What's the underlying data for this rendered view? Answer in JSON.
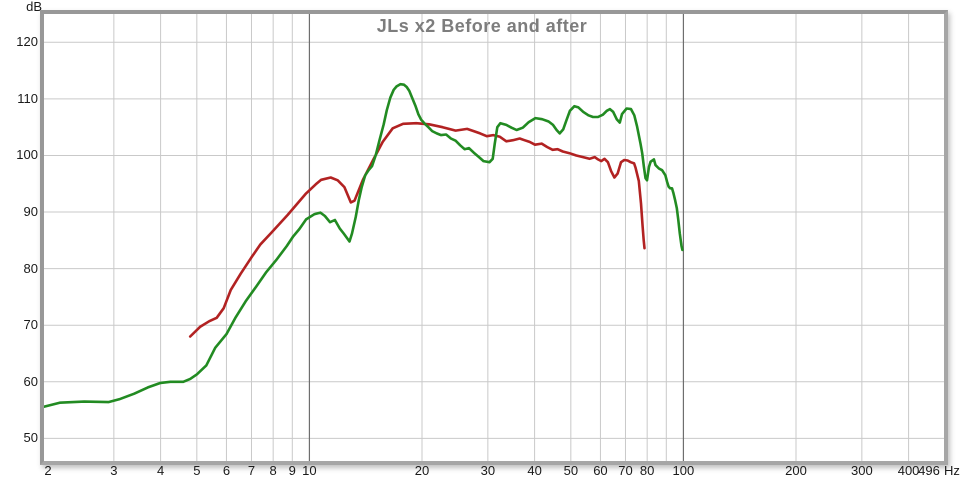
{
  "title": "JLs x2 Before and after",
  "chart_data": {
    "type": "line",
    "title": "JLs x2 Before and after",
    "legend": "none",
    "grid": true,
    "x_axis": {
      "unit": "Hz",
      "scale": "log",
      "min": 2,
      "max": 496,
      "tick_labels": [
        2,
        3,
        4,
        5,
        6,
        7,
        8,
        9,
        10,
        20,
        30,
        40,
        50,
        60,
        70,
        80,
        100,
        200,
        300,
        400,
        496
      ],
      "gridlines": [
        3,
        4,
        5,
        6,
        7,
        8,
        9,
        10,
        20,
        30,
        40,
        50,
        60,
        70,
        80,
        90,
        100,
        200,
        300,
        400
      ],
      "major_gridlines": [
        10,
        100
      ]
    },
    "y_axis": {
      "unit": "dB",
      "min": 46,
      "max": 125,
      "tick_labels": [
        50,
        60,
        70,
        80,
        90,
        100,
        110,
        120
      ],
      "gridlines": [
        50,
        60,
        70,
        80,
        90,
        100,
        110,
        120
      ]
    },
    "series": [
      {
        "name": "red-trace",
        "color": "#b22222",
        "points": [
          [
            4.8,
            68.0
          ],
          [
            5.1,
            69.7
          ],
          [
            5.4,
            70.7
          ],
          [
            5.65,
            71.3
          ],
          [
            5.9,
            73.0
          ],
          [
            6.16,
            76.2
          ],
          [
            6.55,
            79.1
          ],
          [
            7.0,
            82.0
          ],
          [
            7.4,
            84.3
          ],
          [
            7.9,
            86.3
          ],
          [
            8.75,
            89.5
          ],
          [
            9.8,
            93.3
          ],
          [
            10.4,
            94.9
          ],
          [
            10.75,
            95.7
          ],
          [
            11.4,
            96.1
          ],
          [
            11.9,
            95.6
          ],
          [
            12.4,
            94.4
          ],
          [
            12.9,
            91.7
          ],
          [
            13.2,
            92.0
          ],
          [
            13.9,
            95.7
          ],
          [
            14.8,
            99.2
          ],
          [
            15.7,
            102.4
          ],
          [
            16.7,
            104.8
          ],
          [
            17.8,
            105.6
          ],
          [
            19.3,
            105.7
          ],
          [
            20.9,
            105.5
          ],
          [
            22.7,
            105.0
          ],
          [
            24.6,
            104.4
          ],
          [
            26.4,
            104.7
          ],
          [
            27.5,
            104.3
          ],
          [
            28.6,
            103.9
          ],
          [
            29.8,
            103.4
          ],
          [
            31.0,
            103.6
          ],
          [
            32.3,
            103.3
          ],
          [
            33.6,
            102.5
          ],
          [
            35.0,
            102.7
          ],
          [
            36.5,
            103.0
          ],
          [
            37.6,
            102.7
          ],
          [
            38.8,
            102.4
          ],
          [
            40.1,
            101.9
          ],
          [
            41.8,
            102.1
          ],
          [
            43.2,
            101.5
          ],
          [
            44.7,
            101.0
          ],
          [
            46.1,
            101.1
          ],
          [
            47.6,
            100.7
          ],
          [
            49.6,
            100.4
          ],
          [
            51.7,
            100.0
          ],
          [
            53.9,
            99.7
          ],
          [
            56.1,
            99.4
          ],
          [
            57.9,
            99.7
          ],
          [
            59.1,
            99.3
          ],
          [
            60.3,
            99.0
          ],
          [
            61.5,
            99.4
          ],
          [
            62.8,
            98.8
          ],
          [
            64.1,
            97.2
          ],
          [
            65.4,
            96.1
          ],
          [
            66.7,
            96.8
          ],
          [
            68.1,
            98.8
          ],
          [
            69.5,
            99.2
          ],
          [
            70.9,
            99.1
          ],
          [
            72.3,
            98.8
          ],
          [
            73.8,
            98.6
          ],
          [
            74.5,
            97.8
          ],
          [
            76.0,
            95.5
          ],
          [
            77.0,
            91.5
          ],
          [
            77.8,
            87.5
          ],
          [
            78.3,
            85.0
          ],
          [
            78.7,
            83.6
          ]
        ]
      },
      {
        "name": "green-trace",
        "color": "#228b22",
        "points": [
          [
            1.95,
            55.6
          ],
          [
            2.15,
            56.3
          ],
          [
            2.5,
            56.5
          ],
          [
            2.9,
            56.4
          ],
          [
            3.1,
            56.9
          ],
          [
            3.4,
            57.9
          ],
          [
            3.7,
            59.0
          ],
          [
            4.0,
            59.8
          ],
          [
            4.25,
            60.0
          ],
          [
            4.6,
            60.0
          ],
          [
            4.8,
            60.5
          ],
          [
            5.0,
            61.3
          ],
          [
            5.3,
            62.9
          ],
          [
            5.6,
            66.0
          ],
          [
            6.0,
            68.4
          ],
          [
            6.35,
            71.4
          ],
          [
            6.75,
            74.2
          ],
          [
            7.2,
            76.8
          ],
          [
            7.65,
            79.3
          ],
          [
            8.15,
            81.5
          ],
          [
            8.7,
            84.0
          ],
          [
            9.05,
            85.7
          ],
          [
            9.4,
            87.0
          ],
          [
            9.8,
            88.7
          ],
          [
            10.3,
            89.6
          ],
          [
            10.7,
            89.9
          ],
          [
            11.0,
            89.3
          ],
          [
            11.35,
            88.2
          ],
          [
            11.7,
            88.6
          ],
          [
            12.05,
            87.1
          ],
          [
            12.35,
            86.2
          ],
          [
            12.8,
            84.8
          ],
          [
            13.0,
            86.2
          ],
          [
            13.3,
            89.1
          ],
          [
            13.55,
            92.1
          ],
          [
            13.8,
            94.4
          ],
          [
            14.1,
            96.5
          ],
          [
            14.4,
            97.4
          ],
          [
            14.7,
            98.1
          ],
          [
            15.05,
            100.1
          ],
          [
            15.4,
            102.7
          ],
          [
            15.8,
            105.5
          ],
          [
            16.1,
            108.0
          ],
          [
            16.45,
            110.2
          ],
          [
            16.8,
            111.6
          ],
          [
            17.1,
            112.2
          ],
          [
            17.5,
            112.6
          ],
          [
            17.9,
            112.5
          ],
          [
            18.2,
            112.1
          ],
          [
            18.5,
            111.4
          ],
          [
            18.8,
            110.3
          ],
          [
            19.2,
            108.8
          ],
          [
            19.55,
            107.3
          ],
          [
            19.9,
            106.3
          ],
          [
            20.35,
            105.6
          ],
          [
            20.8,
            105.0
          ],
          [
            21.3,
            104.3
          ],
          [
            21.9,
            103.9
          ],
          [
            22.5,
            103.6
          ],
          [
            23.2,
            103.7
          ],
          [
            23.9,
            103.0
          ],
          [
            24.6,
            102.6
          ],
          [
            25.3,
            101.8
          ],
          [
            26.0,
            101.1
          ],
          [
            26.7,
            101.3
          ],
          [
            27.5,
            100.5
          ],
          [
            28.4,
            99.7
          ],
          [
            29.2,
            99.0
          ],
          [
            30.3,
            98.8
          ],
          [
            30.9,
            99.4
          ],
          [
            31.3,
            102.0
          ],
          [
            31.8,
            105.0
          ],
          [
            32.4,
            105.7
          ],
          [
            33.6,
            105.4
          ],
          [
            34.7,
            104.9
          ],
          [
            35.8,
            104.5
          ],
          [
            37.2,
            104.9
          ],
          [
            38.6,
            105.9
          ],
          [
            40.2,
            106.6
          ],
          [
            41.9,
            106.4
          ],
          [
            43.6,
            106.0
          ],
          [
            44.8,
            105.4
          ],
          [
            45.8,
            104.5
          ],
          [
            46.7,
            103.9
          ],
          [
            47.7,
            104.6
          ],
          [
            48.7,
            106.3
          ],
          [
            49.7,
            107.9
          ],
          [
            51.1,
            108.7
          ],
          [
            52.4,
            108.5
          ],
          [
            54.0,
            107.7
          ],
          [
            55.7,
            107.1
          ],
          [
            57.3,
            106.8
          ],
          [
            59.1,
            106.8
          ],
          [
            60.9,
            107.2
          ],
          [
            62.4,
            107.9
          ],
          [
            63.6,
            108.2
          ],
          [
            64.9,
            107.7
          ],
          [
            66.3,
            106.4
          ],
          [
            67.6,
            105.8
          ],
          [
            68.5,
            107.3
          ],
          [
            70.5,
            108.3
          ],
          [
            72.4,
            108.2
          ],
          [
            73.9,
            107.1
          ],
          [
            75.2,
            105.1
          ],
          [
            76.8,
            102.1
          ],
          [
            77.6,
            100.4
          ],
          [
            78.4,
            98.0
          ],
          [
            79.2,
            96.0
          ],
          [
            79.9,
            95.6
          ],
          [
            80.9,
            98.0
          ],
          [
            81.7,
            98.9
          ],
          [
            83.4,
            99.3
          ],
          [
            84.2,
            98.3
          ],
          [
            86.0,
            97.7
          ],
          [
            87.7,
            97.4
          ],
          [
            89.5,
            96.5
          ],
          [
            90.4,
            95.4
          ],
          [
            91.3,
            94.5
          ],
          [
            92.2,
            94.2
          ],
          [
            93.2,
            94.2
          ],
          [
            94.1,
            93.3
          ],
          [
            95.0,
            92.1
          ],
          [
            96.0,
            90.7
          ],
          [
            96.9,
            88.6
          ],
          [
            97.8,
            86.2
          ],
          [
            98.8,
            84.0
          ],
          [
            99.4,
            83.3
          ]
        ]
      }
    ]
  },
  "colors": {
    "minor_grid": "#c9c9c9",
    "major_grid": "#6e6e6e",
    "frame_border": "#a0a0a0",
    "title_text": "#7d7d7d",
    "tick_text": "#1a1a1a",
    "background": "#ffffff"
  }
}
